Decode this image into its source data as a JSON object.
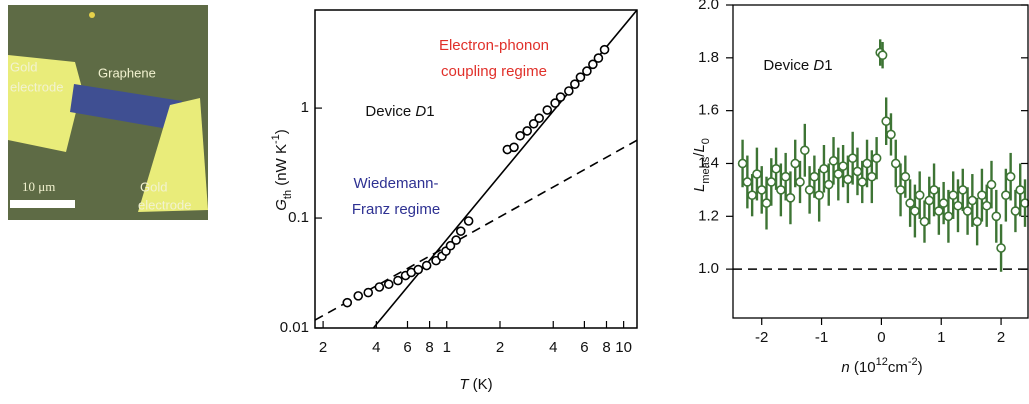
{
  "image_panel": {
    "labels": [
      {
        "lines": [
          "Gold",
          "electrode"
        ]
      },
      {
        "lines": [
          "Graphene"
        ]
      },
      {
        "lines": [
          "Gold",
          "electrode"
        ]
      }
    ],
    "scale_bar": "10 μm"
  },
  "chart_data": [
    {
      "type": "scatter",
      "xscale": "log",
      "yscale": "log",
      "xlim": [
        0.18,
        11.9
      ],
      "ylim": [
        0.01,
        7.8
      ],
      "xticks": [
        {
          "value": 0.2,
          "label": "2"
        },
        {
          "value": 0.4,
          "label": "4"
        },
        {
          "value": 0.6,
          "label": "6"
        },
        {
          "value": 0.8,
          "label": "8"
        },
        1,
        2,
        4,
        6,
        8,
        10
      ],
      "yticks": [
        0.01,
        0.1,
        1
      ],
      "x_label": [
        {
          "text": "T",
          "style": "italic"
        },
        {
          "text": " (K)"
        }
      ],
      "y_label": [
        {
          "text": "G",
          "style": "italic"
        },
        {
          "text": "th",
          "style": "sub"
        },
        {
          "text": " (nW K"
        },
        {
          "text": "-1",
          "style": "sup"
        },
        {
          "text": ")"
        }
      ],
      "annotations": [
        {
          "color": "#e0302a",
          "lines": [
            [
              {
                "text": "Electron-phonon"
              }
            ],
            [
              {
                "text": "coupling regime"
              }
            ]
          ]
        },
        {
          "color": "#111111",
          "lines": [
            [
              {
                "text": "Device "
              },
              {
                "text": "D",
                "style": "italic"
              },
              {
                "text": "1"
              }
            ]
          ]
        },
        {
          "color": "#2e3192",
          "lines": [
            [
              {
                "text": "Wiedemann-"
              }
            ],
            [
              {
                "text": "Franz regime"
              }
            ]
          ]
        }
      ],
      "points": {
        "color": "#000000",
        "x": [
          0.274,
          0.316,
          0.36,
          0.416,
          0.47,
          0.53,
          0.585,
          0.63,
          0.69,
          0.77,
          0.87,
          0.94,
          0.99,
          1.05,
          1.13,
          1.2,
          1.33,
          2.2,
          2.4,
          2.6,
          2.85,
          3.1,
          3.33,
          3.7,
          4.1,
          4.4,
          4.9,
          5.3,
          5.7,
          6.2,
          6.7,
          7.2,
          7.8
        ],
        "values": [
          0.017,
          0.0196,
          0.021,
          0.0236,
          0.025,
          0.027,
          0.03,
          0.032,
          0.034,
          0.037,
          0.041,
          0.045,
          0.05,
          0.056,
          0.063,
          0.076,
          0.094,
          0.42,
          0.44,
          0.56,
          0.62,
          0.72,
          0.81,
          0.96,
          1.11,
          1.26,
          1.43,
          1.65,
          1.91,
          2.17,
          2.5,
          2.85,
          3.4
        ]
      },
      "fit_lines": [
        {
          "style": "solid",
          "x": [
            0.385,
            11.9
          ],
          "values": [
            0.01,
            7.8
          ]
        },
        {
          "style": "dashed",
          "x": [
            0.18,
            11.9
          ],
          "values": [
            0.0118,
            0.51
          ]
        }
      ]
    },
    {
      "type": "scatter",
      "xscale": "linear",
      "yscale": "linear",
      "xlim": [
        -2.48,
        2.45
      ],
      "ylim": [
        0.815,
        2.0
      ],
      "xticks": [
        -2,
        -1,
        0,
        1,
        2
      ],
      "yticks": [
        {
          "value": 1.0,
          "label": "1.0"
        },
        {
          "value": 1.2,
          "label": "1.2"
        },
        {
          "value": 1.4,
          "label": "1.4"
        },
        {
          "value": 1.6,
          "label": "1.6"
        },
        {
          "value": 1.8,
          "label": "1.8"
        },
        {
          "value": 2.0,
          "label": "2.0"
        }
      ],
      "x_label": [
        {
          "text": "n",
          "style": "italic"
        },
        {
          "text": " (10"
        },
        {
          "text": "12",
          "style": "sup"
        },
        {
          "text": "cm"
        },
        {
          "text": "-2",
          "style": "sup"
        },
        {
          "text": ")"
        }
      ],
      "y_label": [
        {
          "text": "L",
          "style": "italic"
        },
        {
          "text": "meas",
          "style": "sub"
        },
        {
          "text": "/"
        },
        {
          "text": "L",
          "style": "italic"
        },
        {
          "text": "0",
          "style": "sub"
        }
      ],
      "annotations": [
        {
          "color": "#111111",
          "lines": [
            [
              {
                "text": "Device "
              },
              {
                "text": "D",
                "style": "italic"
              },
              {
                "text": "1"
              }
            ]
          ]
        }
      ],
      "hlines": [
        {
          "value": 1.0,
          "style": "dashed"
        }
      ],
      "points": {
        "color": "#3d7434",
        "x": [
          -2.32,
          -2.24,
          -2.16,
          -2.08,
          -2.0,
          -1.92,
          -1.84,
          -1.76,
          -1.68,
          -1.6,
          -1.52,
          -1.44,
          -1.36,
          -1.28,
          -1.2,
          -1.12,
          -1.04,
          -0.96,
          -0.88,
          -0.8,
          -0.72,
          -0.64,
          -0.56,
          -0.48,
          -0.4,
          -0.32,
          -0.24,
          -0.16,
          -0.08,
          -0.02,
          0.02,
          0.08,
          0.16,
          0.24,
          0.32,
          0.4,
          0.48,
          0.56,
          0.64,
          0.72,
          0.8,
          0.88,
          0.96,
          1.04,
          1.12,
          1.2,
          1.28,
          1.36,
          1.44,
          1.52,
          1.6,
          1.68,
          1.76,
          1.84,
          1.92,
          2.0,
          2.08,
          2.16,
          2.24,
          2.32,
          2.4
        ],
        "values": [
          1.4,
          1.33,
          1.28,
          1.36,
          1.3,
          1.25,
          1.33,
          1.38,
          1.3,
          1.35,
          1.27,
          1.4,
          1.33,
          1.45,
          1.3,
          1.35,
          1.28,
          1.38,
          1.32,
          1.41,
          1.36,
          1.39,
          1.34,
          1.42,
          1.37,
          1.33,
          1.4,
          1.35,
          1.42,
          1.82,
          1.81,
          1.56,
          1.51,
          1.4,
          1.3,
          1.35,
          1.25,
          1.22,
          1.28,
          1.18,
          1.26,
          1.3,
          1.22,
          1.25,
          1.2,
          1.28,
          1.24,
          1.3,
          1.22,
          1.26,
          1.18,
          1.28,
          1.24,
          1.32,
          1.2,
          1.08,
          1.28,
          1.35,
          1.22,
          1.3,
          1.25
        ],
        "errors": [
          0.09,
          0.1,
          0.08,
          0.1,
          0.09,
          0.1,
          0.09,
          0.08,
          0.1,
          0.09,
          0.1,
          0.09,
          0.08,
          0.1,
          0.09,
          0.08,
          0.1,
          0.09,
          0.08,
          0.09,
          0.1,
          0.08,
          0.09,
          0.1,
          0.09,
          0.08,
          0.09,
          0.1,
          0.08,
          0.05,
          0.05,
          0.09,
          0.08,
          0.09,
          0.1,
          0.08,
          0.09,
          0.1,
          0.09,
          0.08,
          0.09,
          0.1,
          0.09,
          0.08,
          0.1,
          0.09,
          0.1,
          0.08,
          0.09,
          0.1,
          0.09,
          0.1,
          0.08,
          0.09,
          0.1,
          0.09,
          0.1,
          0.09,
          0.08,
          0.1,
          0.09
        ]
      }
    }
  ]
}
